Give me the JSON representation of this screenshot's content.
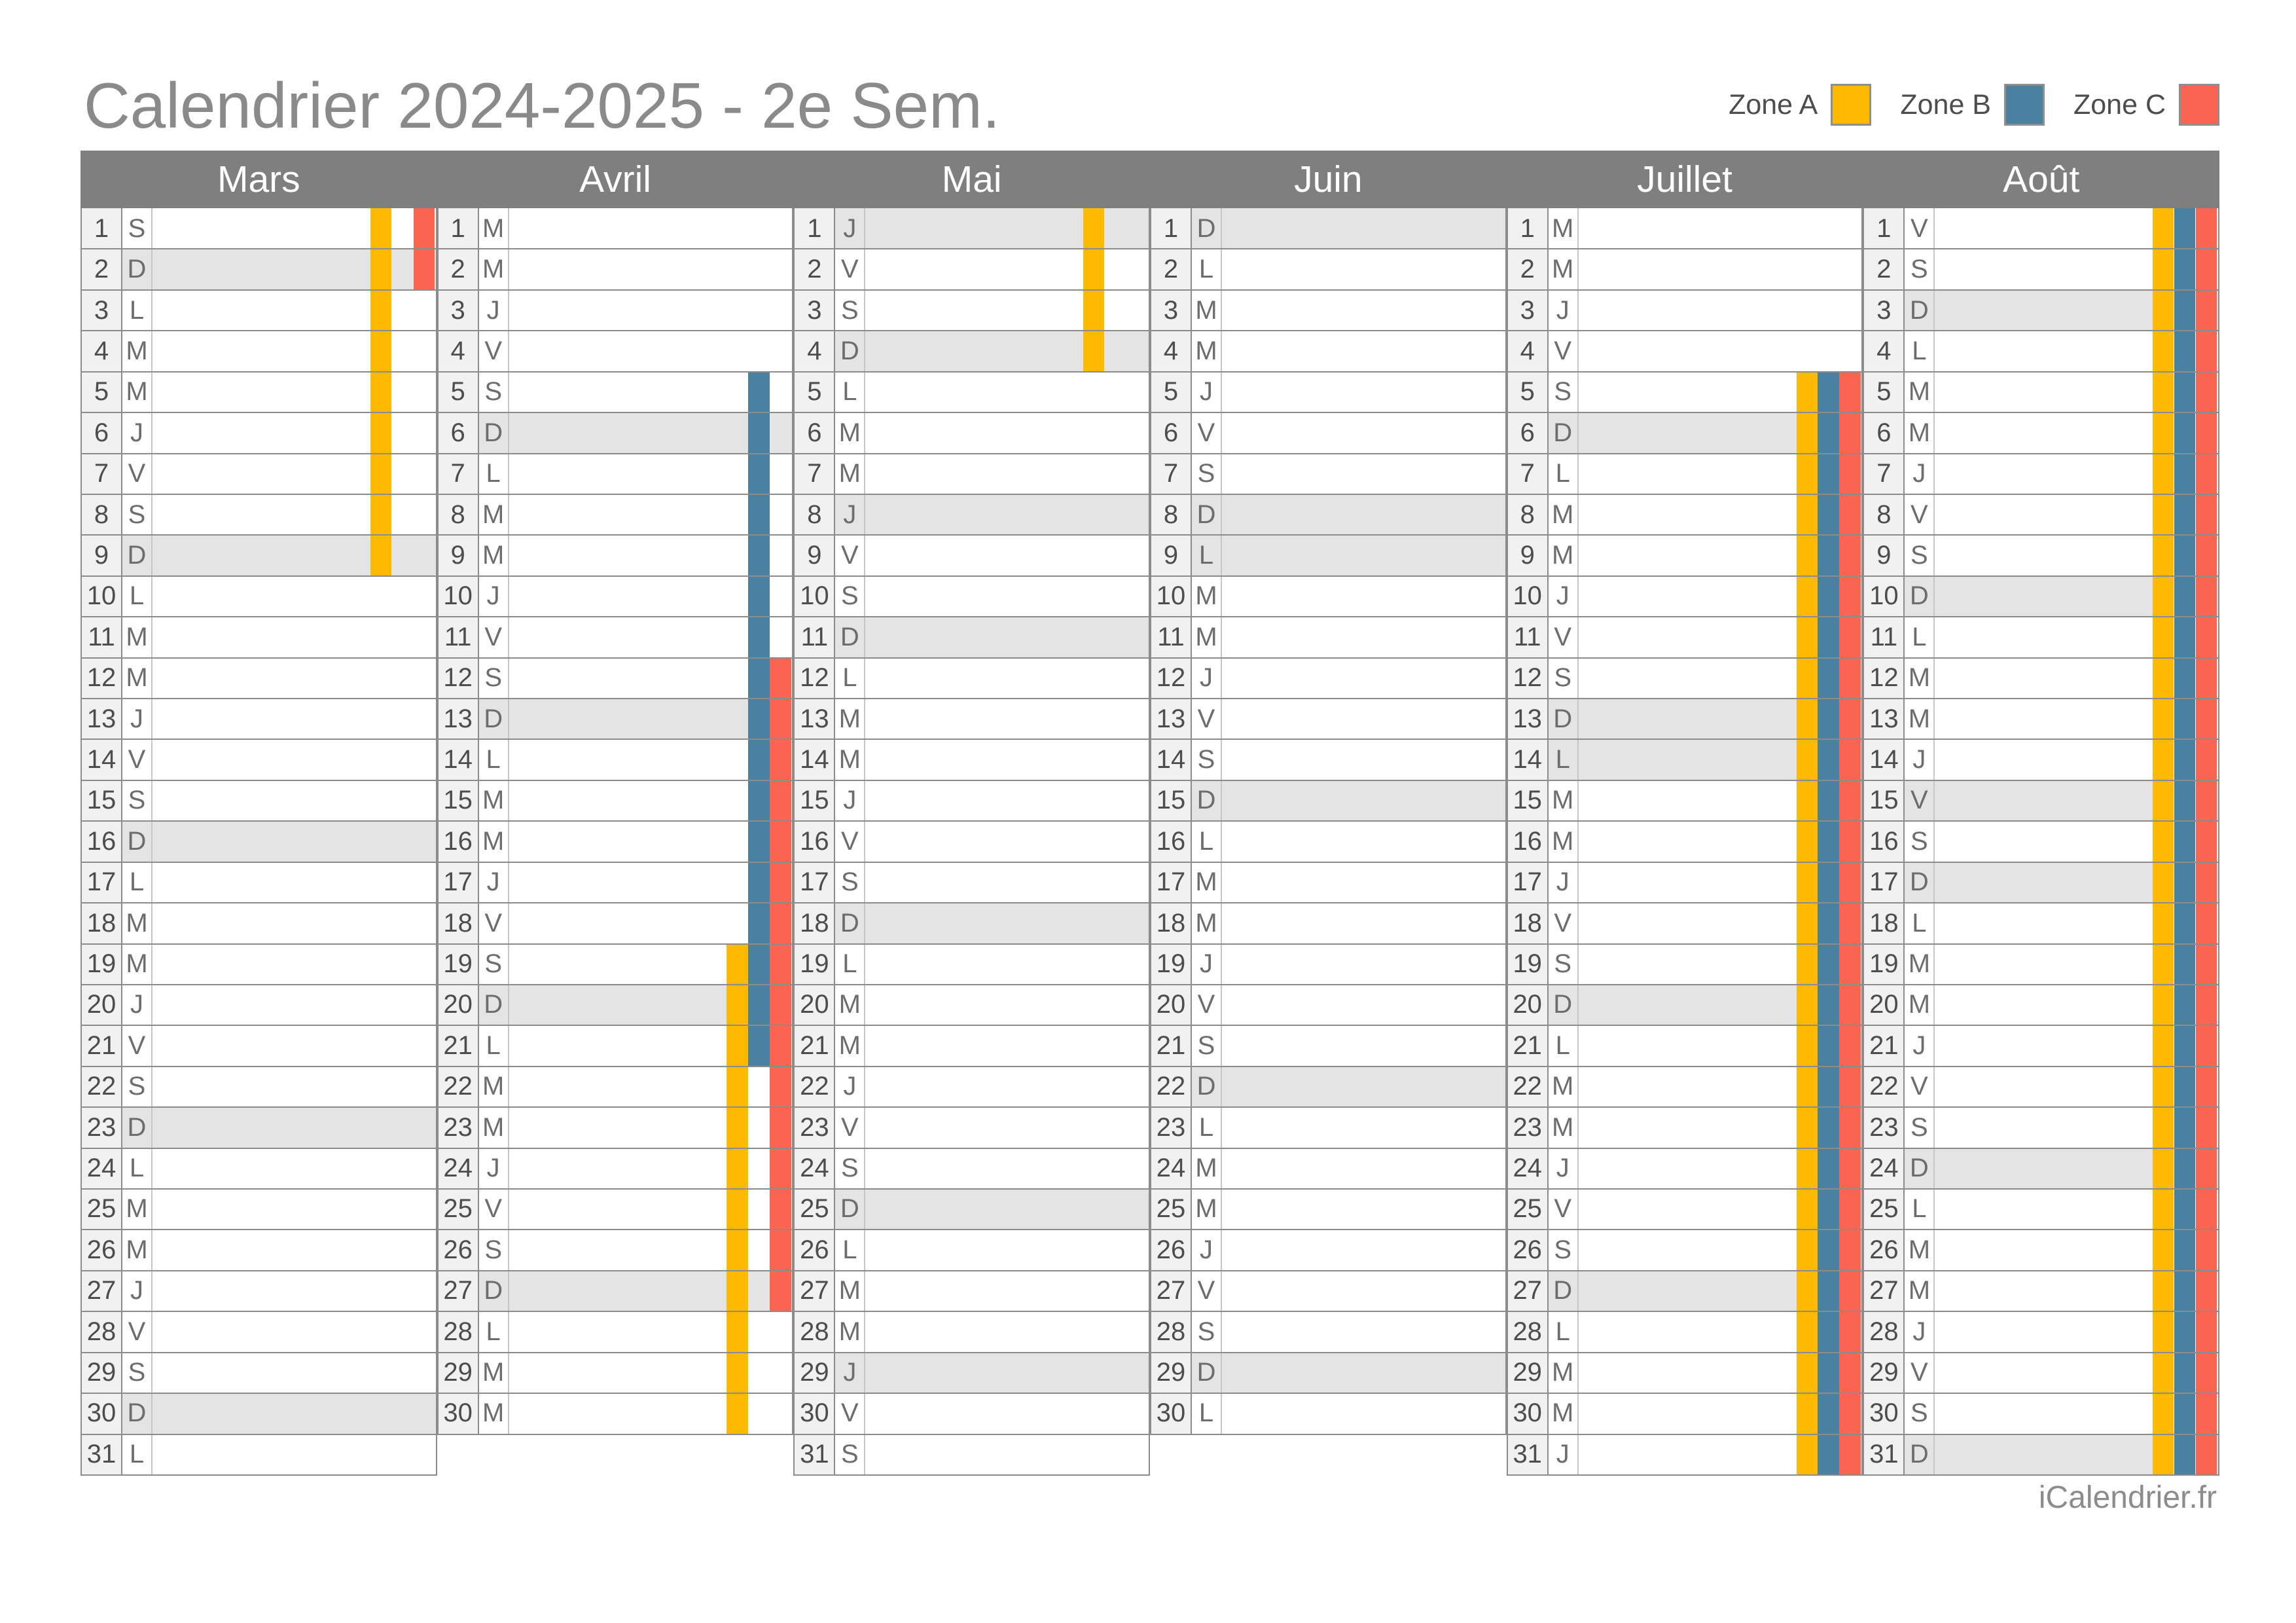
{
  "title": "Calendrier 2024-2025 - 2e Sem.",
  "footer": "iCalendrier.fr",
  "legend": [
    {
      "label": "Zone A",
      "zone": "A",
      "color": "#FDBA00"
    },
    {
      "label": "Zone B",
      "zone": "B",
      "color": "#4A80A0"
    },
    {
      "label": "Zone C",
      "zone": "C",
      "color": "#FB6450"
    }
  ],
  "colors": {
    "header_band": "#7F7F7F",
    "sunday_holiday_shade": "#E4E4E4",
    "number_cell": "#F1F1F1",
    "grid_line": "#8C8C8C",
    "title_gray": "#8A8A8A"
  },
  "calendar": {
    "months": [
      {
        "name": "Mars",
        "letters": [
          "S",
          "D",
          "L",
          "M",
          "M",
          "J",
          "V",
          "S",
          "D",
          "L",
          "M",
          "M",
          "J",
          "V",
          "S",
          "D",
          "L",
          "M",
          "M",
          "J",
          "V",
          "S",
          "D",
          "L",
          "M",
          "M",
          "J",
          "V",
          "S",
          "D",
          "L"
        ],
        "holidays": [],
        "bars": [
          {
            "zone": "A",
            "from": 1,
            "to": 9
          },
          {
            "zone": "C",
            "from": 1,
            "to": 2
          }
        ]
      },
      {
        "name": "Avril",
        "letters": [
          "M",
          "M",
          "J",
          "V",
          "S",
          "D",
          "L",
          "M",
          "M",
          "J",
          "V",
          "S",
          "D",
          "L",
          "M",
          "M",
          "J",
          "V",
          "S",
          "D",
          "L",
          "M",
          "M",
          "J",
          "V",
          "S",
          "D",
          "L",
          "M",
          "M"
        ],
        "holidays": [],
        "bars": [
          {
            "zone": "B",
            "from": 5,
            "to": 21
          },
          {
            "zone": "C",
            "from": 12,
            "to": 27
          },
          {
            "zone": "A",
            "from": 19,
            "to": 30
          }
        ]
      },
      {
        "name": "Mai",
        "letters": [
          "J",
          "V",
          "S",
          "D",
          "L",
          "M",
          "M",
          "J",
          "V",
          "S",
          "D",
          "L",
          "M",
          "M",
          "J",
          "V",
          "S",
          "D",
          "L",
          "M",
          "M",
          "J",
          "V",
          "S",
          "D",
          "L",
          "M",
          "M",
          "J",
          "V",
          "S"
        ],
        "holidays": [
          1,
          8,
          29
        ],
        "bars": [
          {
            "zone": "A",
            "from": 1,
            "to": 4
          }
        ]
      },
      {
        "name": "Juin",
        "letters": [
          "D",
          "L",
          "M",
          "M",
          "J",
          "V",
          "S",
          "D",
          "L",
          "M",
          "M",
          "J",
          "V",
          "S",
          "D",
          "L",
          "M",
          "M",
          "J",
          "V",
          "S",
          "D",
          "L",
          "M",
          "M",
          "J",
          "V",
          "S",
          "D",
          "L"
        ],
        "holidays": [
          9
        ],
        "bars": []
      },
      {
        "name": "Juillet",
        "letters": [
          "M",
          "M",
          "J",
          "V",
          "S",
          "D",
          "L",
          "M",
          "M",
          "J",
          "V",
          "S",
          "D",
          "L",
          "M",
          "M",
          "J",
          "V",
          "S",
          "D",
          "L",
          "M",
          "M",
          "J",
          "V",
          "S",
          "D",
          "L",
          "M",
          "M",
          "J"
        ],
        "holidays": [
          14
        ],
        "bars": [
          {
            "zone": "A",
            "from": 5,
            "to": 31
          },
          {
            "zone": "B",
            "from": 5,
            "to": 31
          },
          {
            "zone": "C",
            "from": 5,
            "to": 31
          }
        ]
      },
      {
        "name": "Août",
        "letters": [
          "V",
          "S",
          "D",
          "L",
          "M",
          "M",
          "J",
          "V",
          "S",
          "D",
          "L",
          "M",
          "M",
          "J",
          "V",
          "S",
          "D",
          "L",
          "M",
          "M",
          "J",
          "V",
          "S",
          "D",
          "L",
          "M",
          "M",
          "J",
          "V",
          "S",
          "D"
        ],
        "holidays": [
          15
        ],
        "bars": [
          {
            "zone": "A",
            "from": 1,
            "to": 31
          },
          {
            "zone": "B",
            "from": 1,
            "to": 31
          },
          {
            "zone": "C",
            "from": 1,
            "to": 31
          }
        ]
      }
    ]
  }
}
